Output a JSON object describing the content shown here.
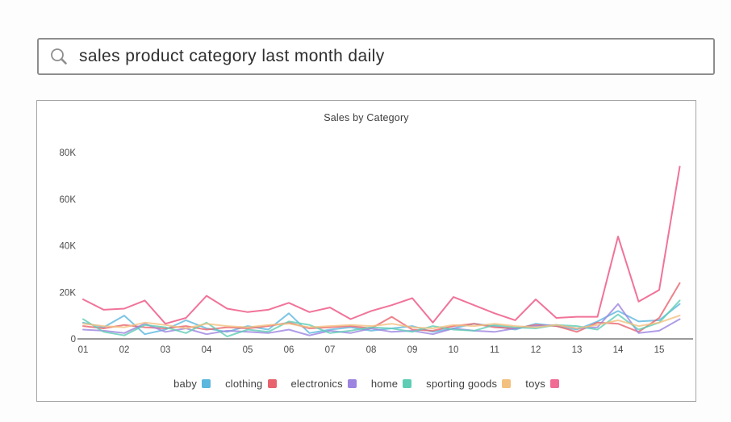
{
  "search": {
    "value": "sales product category last month daily"
  },
  "chart_data": {
    "type": "line",
    "title": "Sales by Category",
    "xlabel": "",
    "ylabel": "",
    "ylim": [
      0,
      80000
    ],
    "grid": false,
    "legend_position": "bottom",
    "x_tick_labels": [
      "01",
      "02",
      "03",
      "04",
      "05",
      "06",
      "07",
      "08",
      "09",
      "10",
      "11",
      "12",
      "13",
      "14",
      "15"
    ],
    "points_per_tick": 2,
    "y_ticks": [
      {
        "value": 0,
        "label": "0"
      },
      {
        "value": 20000,
        "label": "20K"
      },
      {
        "value": 40000,
        "label": "40K"
      },
      {
        "value": 60000,
        "label": "60K"
      },
      {
        "value": 80000,
        "label": "80K"
      }
    ],
    "series": [
      {
        "name": "baby",
        "color": "#5BB7DE",
        "values": [
          7000,
          5000,
          10000,
          2000,
          4000,
          8000,
          4500,
          3000,
          5500,
          4000,
          11000,
          2500,
          4000,
          5000,
          3500,
          4500,
          5500,
          3000,
          4500,
          6500,
          5500,
          4000,
          6500,
          5500,
          4000,
          7500,
          12000,
          7500,
          8000,
          15000
        ]
      },
      {
        "name": "clothing",
        "color": "#E8636D",
        "values": [
          5500,
          4500,
          6000,
          5000,
          4500,
          5500,
          4000,
          5000,
          4500,
          5500,
          7000,
          4500,
          5000,
          5500,
          4500,
          9500,
          4000,
          3500,
          5500,
          6500,
          5000,
          4500,
          6000,
          5500,
          3000,
          7000,
          6500,
          3000,
          9000,
          24000
        ]
      },
      {
        "name": "electronics",
        "color": "#9C84E0",
        "values": [
          4000,
          3500,
          2500,
          6500,
          3000,
          4500,
          2000,
          3500,
          3000,
          2500,
          4000,
          1500,
          3500,
          2500,
          4500,
          3000,
          3500,
          2000,
          4500,
          3500,
          3000,
          4500,
          5500,
          6000,
          4500,
          5000,
          15000,
          2500,
          3500,
          8500
        ]
      },
      {
        "name": "home",
        "color": "#5FCDB4",
        "values": [
          8500,
          3000,
          1500,
          6000,
          5000,
          2500,
          7000,
          1000,
          4000,
          3000,
          7500,
          6000,
          2500,
          3500,
          5000,
          4500,
          3000,
          5500,
          4000,
          3500,
          6000,
          5000,
          4500,
          6000,
          5500,
          4000,
          10500,
          4000,
          7000,
          16500
        ]
      },
      {
        "name": "sporting goods",
        "color": "#F2C180",
        "values": [
          6500,
          5500,
          5000,
          7000,
          6000,
          4500,
          6500,
          5500,
          5000,
          6000,
          6500,
          5000,
          5500,
          6000,
          5500,
          6500,
          5000,
          4500,
          6000,
          5500,
          6500,
          5500,
          5000,
          6000,
          4500,
          6000,
          8000,
          5500,
          7000,
          10000
        ]
      },
      {
        "name": "toys",
        "color": "#F06C94",
        "values": [
          17000,
          12500,
          13000,
          16500,
          6500,
          9000,
          18500,
          13000,
          11500,
          12500,
          15500,
          11500,
          13500,
          8500,
          12000,
          14500,
          17500,
          7000,
          18000,
          14500,
          11000,
          8000,
          17000,
          9000,
          9500,
          9500,
          44000,
          16000,
          21000,
          74000
        ]
      }
    ],
    "axis_color": "#9b9b9b",
    "tick_label_color": "#4a4a4a"
  }
}
